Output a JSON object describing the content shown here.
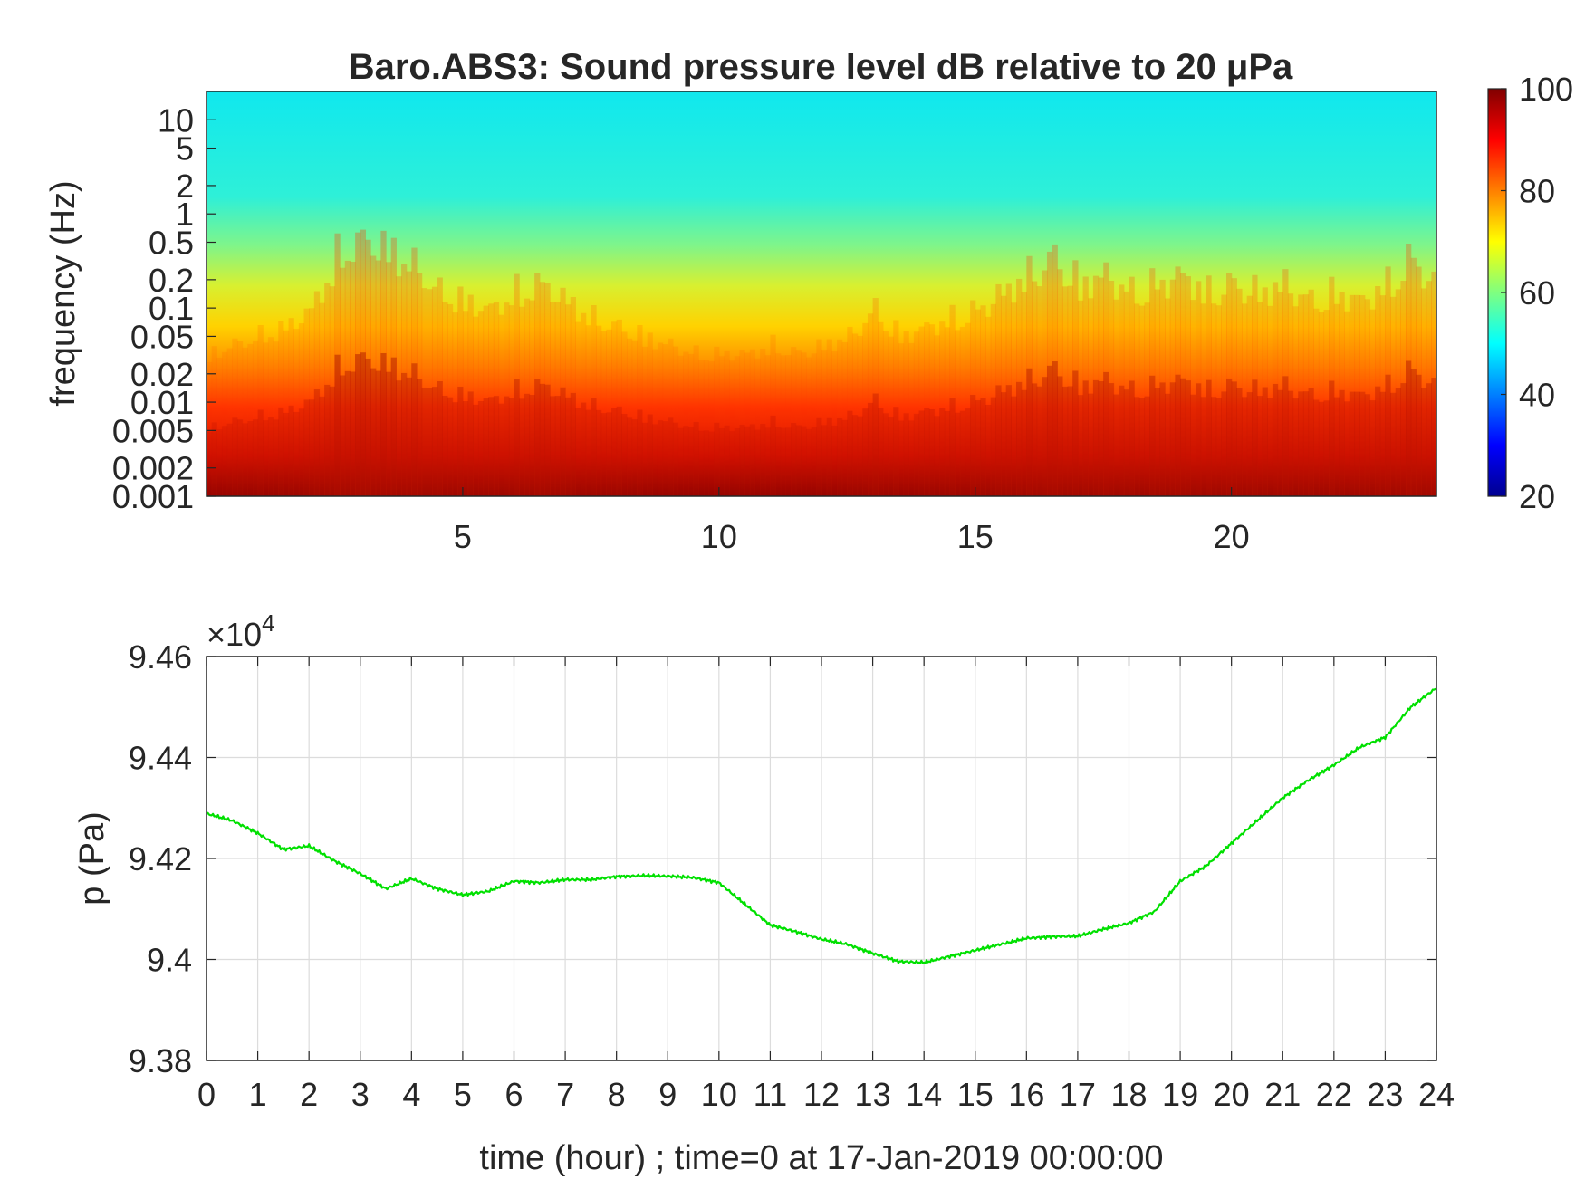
{
  "chart_data": [
    {
      "type": "heatmap",
      "title": "Baro.ABS3: Sound pressure level dB relative to 20 μPa",
      "ylabel": "frequency (Hz)",
      "xlabel": "",
      "x_ticks": [
        5,
        10,
        15,
        20
      ],
      "x_range": [
        0,
        24
      ],
      "y_scale": "log",
      "y_range": [
        0.001,
        20
      ],
      "y_ticks": [
        0.001,
        0.002,
        0.005,
        0.01,
        0.02,
        0.05,
        0.1,
        0.2,
        0.5,
        1,
        2,
        5,
        10
      ],
      "y_tick_labels": [
        "0.001",
        "0.002",
        "0.005",
        "0.01",
        "0.02",
        "0.05",
        "0.1",
        "0.2",
        "0.5",
        "1",
        "2",
        "5",
        "10"
      ],
      "colorbar": {
        "range": [
          20,
          100
        ],
        "ticks": [
          20,
          40,
          60,
          80,
          100
        ],
        "colormap": "jet"
      },
      "energy_profile": {
        "time_hours": [
          0,
          0.5,
          1,
          1.5,
          2,
          2.5,
          3,
          3.5,
          4,
          4.5,
          5,
          5.5,
          6,
          6.5,
          7,
          7.5,
          8,
          8.5,
          9,
          9.5,
          10,
          10.5,
          11,
          11.5,
          12,
          12.5,
          13,
          13.5,
          14,
          14.5,
          15,
          15.5,
          16,
          16.5,
          17,
          17.5,
          18,
          18.5,
          19,
          19.5,
          20,
          20.5,
          21,
          21.5,
          22,
          22.5,
          23,
          23.5,
          24
        ],
        "relative_level": [
          0.35,
          0.4,
          0.45,
          0.5,
          0.6,
          0.9,
          1.0,
          0.95,
          0.85,
          0.7,
          0.65,
          0.6,
          0.7,
          0.75,
          0.65,
          0.55,
          0.5,
          0.45,
          0.4,
          0.35,
          0.35,
          0.35,
          0.4,
          0.35,
          0.4,
          0.45,
          0.6,
          0.45,
          0.5,
          0.55,
          0.6,
          0.7,
          0.8,
          0.9,
          0.75,
          0.8,
          0.7,
          0.75,
          0.8,
          0.7,
          0.75,
          0.7,
          0.75,
          0.65,
          0.7,
          0.65,
          0.75,
          0.9,
          0.7
        ]
      }
    },
    {
      "type": "line",
      "xlabel": "time (hour) ; time=0 at 17-Jan-2019 00:00:00",
      "ylabel": "p (Pa)",
      "exponent_label": "×10",
      "exponent_power": "4",
      "xlim": [
        0,
        24
      ],
      "ylim": [
        9.38,
        9.46
      ],
      "y_scale_factor": 10000,
      "x_ticks": [
        0,
        1,
        2,
        3,
        4,
        5,
        6,
        7,
        8,
        9,
        10,
        11,
        12,
        13,
        14,
        15,
        16,
        17,
        18,
        19,
        20,
        21,
        22,
        23,
        24
      ],
      "y_ticks": [
        9.38,
        9.4,
        9.42,
        9.44,
        9.46
      ],
      "y_tick_labels": [
        "9.38",
        "9.4",
        "9.42",
        "9.44",
        "9.46"
      ],
      "grid": true,
      "line_color": "#00e000",
      "series": [
        {
          "x": [
            0,
            0.5,
            1,
            1.5,
            2,
            2.5,
            3,
            3.5,
            4,
            4.5,
            5,
            5.5,
            6,
            6.5,
            7,
            7.5,
            8,
            8.5,
            9,
            9.5,
            10,
            10.5,
            11,
            11.5,
            12,
            12.5,
            13,
            13.5,
            14,
            14.5,
            15,
            15.5,
            16,
            16.5,
            17,
            17.5,
            18,
            18.5,
            19,
            19.5,
            20,
            20.5,
            21,
            21.5,
            22,
            22.5,
            23,
            23.5,
            24
          ],
          "y": [
            9.4289,
            9.4275,
            9.425,
            9.4218,
            9.4225,
            9.4195,
            9.417,
            9.414,
            9.416,
            9.414,
            9.4128,
            9.4135,
            9.4155,
            9.4152,
            9.4158,
            9.4158,
            9.4164,
            9.4166,
            9.4165,
            9.4162,
            9.4152,
            9.411,
            9.4068,
            9.4055,
            9.404,
            9.403,
            9.4012,
            9.3996,
            9.3994,
            9.4006,
            9.4018,
            9.403,
            9.4042,
            9.4045,
            9.4046,
            9.406,
            9.4072,
            9.4095,
            9.4155,
            9.4185,
            9.423,
            9.4275,
            9.432,
            9.4355,
            9.4385,
            9.442,
            9.444,
            9.45,
            9.4538
          ]
        }
      ]
    }
  ]
}
